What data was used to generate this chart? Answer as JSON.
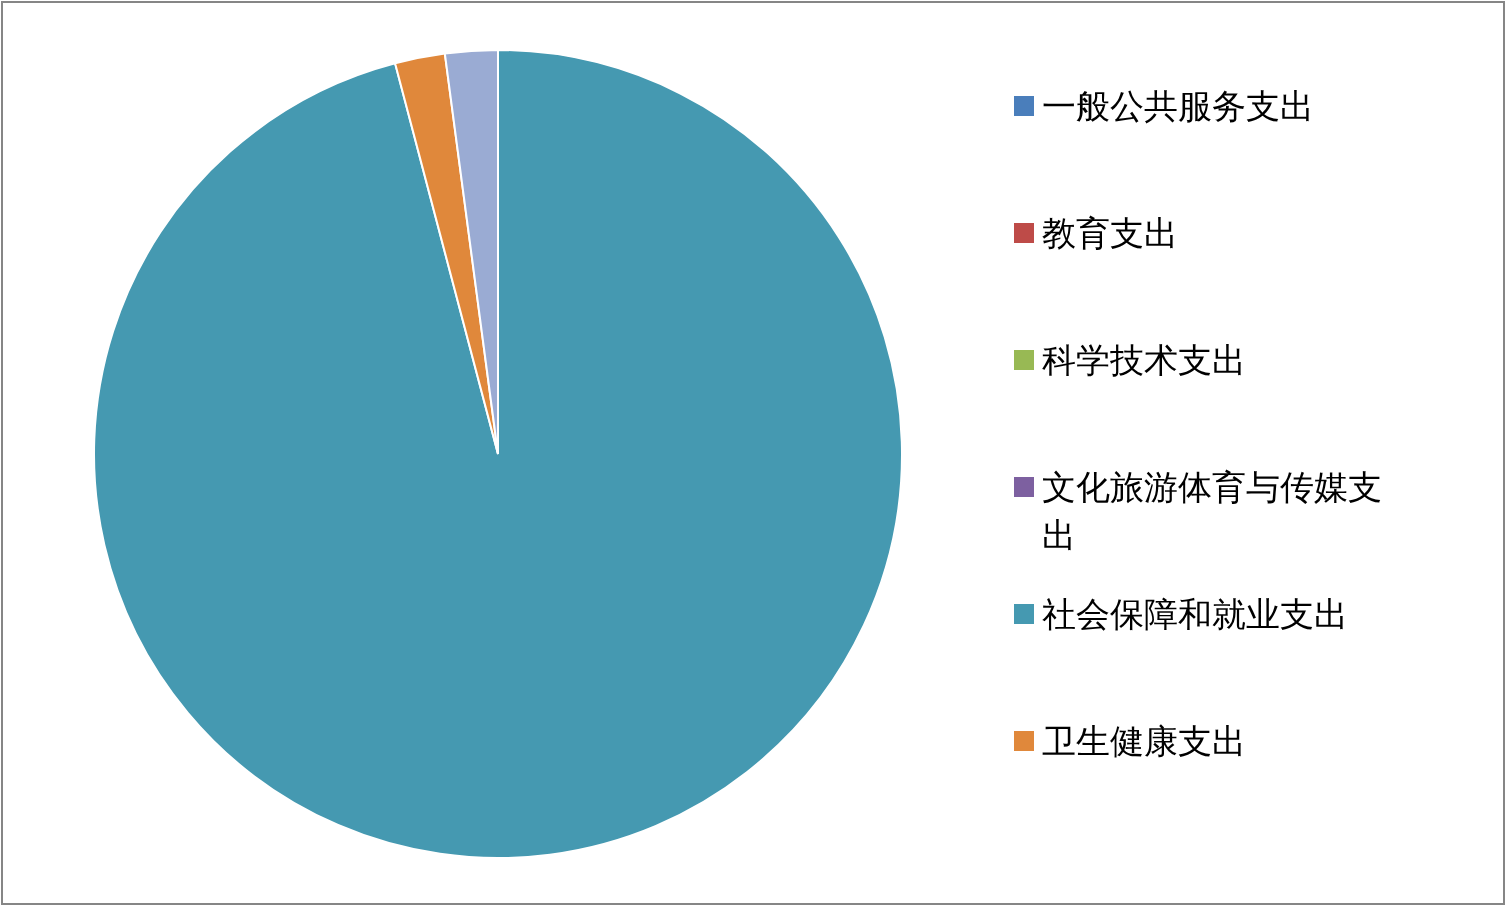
{
  "chart_data": {
    "type": "pie",
    "legend": "right",
    "categories": [
      "一般公共服务支出",
      "教育支出",
      "科学技术支出",
      "文化旅游体育与传媒支出",
      "社会保障和就业支出",
      "卫生健康支出",
      null
    ],
    "values": [
      0,
      0,
      0,
      0,
      95.9,
      2.0,
      2.1
    ],
    "colors": [
      "#4a7ebb",
      "#be4b48",
      "#98b954",
      "#7d60a0",
      "#4599b1",
      "#e0883b",
      "#9aabd3"
    ]
  }
}
